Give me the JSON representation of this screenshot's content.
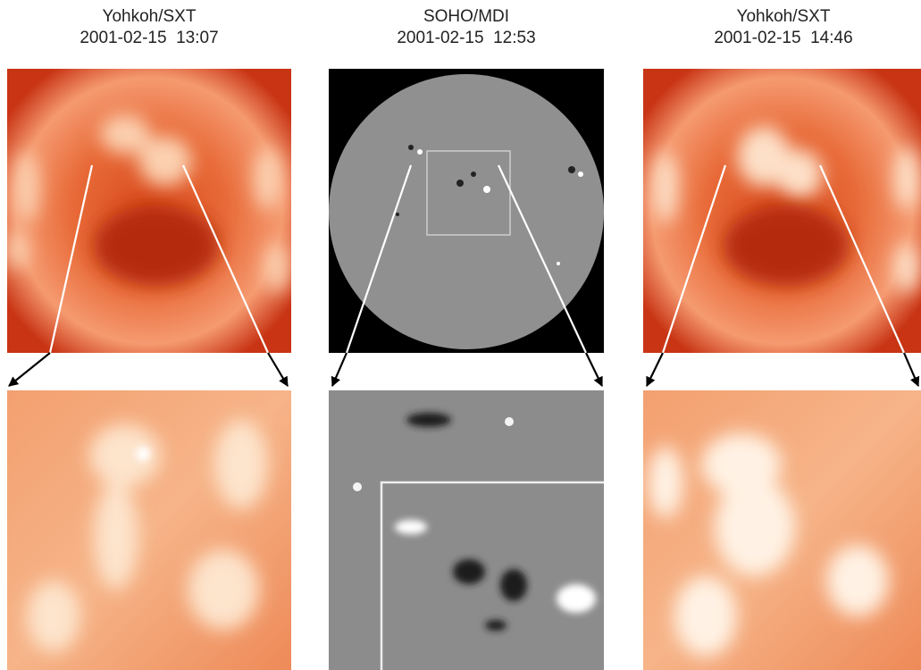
{
  "panels": [
    {
      "instrument": "Yohkoh/SXT",
      "time": "2001-02-15  13:07"
    },
    {
      "instrument": "SOHO/MDI",
      "time": "2001-02-15  12:53"
    },
    {
      "instrument": "Yohkoh/SXT",
      "time": "2001-02-15  14:46"
    }
  ]
}
